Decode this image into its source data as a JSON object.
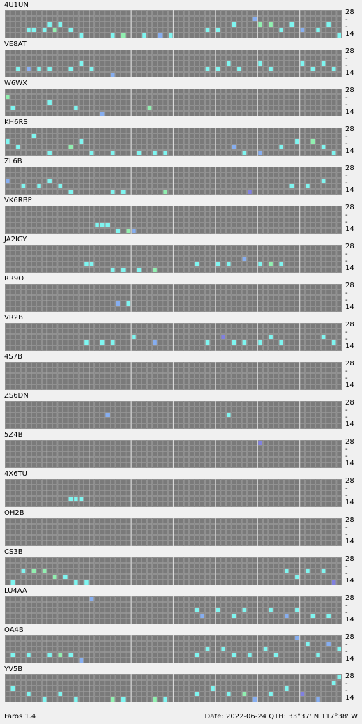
{
  "axis_ticks": {
    "top": "28",
    "mid1": "-",
    "mid2": "-",
    "bottom": "14"
  },
  "colors": {
    "background": "#7a7a7a",
    "cell_outline": "#a8a8a8",
    "divider": "#d8d8d8",
    "cyan": "#7ff5f0",
    "green": "#90f0b0",
    "blue": "#86aef0",
    "violet": "#8080e0"
  },
  "stations": [
    {
      "name": "4U1UN"
    },
    {
      "name": "VE8AT"
    },
    {
      "name": "W6WX"
    },
    {
      "name": "KH6RS"
    },
    {
      "name": "ZL6B"
    },
    {
      "name": "VK6RBP"
    },
    {
      "name": "JA2IGY"
    },
    {
      "name": "RR9O"
    },
    {
      "name": "VR2B"
    },
    {
      "name": "4S7B"
    },
    {
      "name": "ZS6DN"
    },
    {
      "name": "5Z4B"
    },
    {
      "name": "4X6TU"
    },
    {
      "name": "OH2B"
    },
    {
      "name": "CS3B"
    },
    {
      "name": "LU4AA"
    },
    {
      "name": "OA4B"
    },
    {
      "name": "YV5B"
    }
  ],
  "status": {
    "app": "Faros 1.4",
    "info": "Date: 2022-06-24    QTH: 33°37' N  117°38' W"
  }
}
